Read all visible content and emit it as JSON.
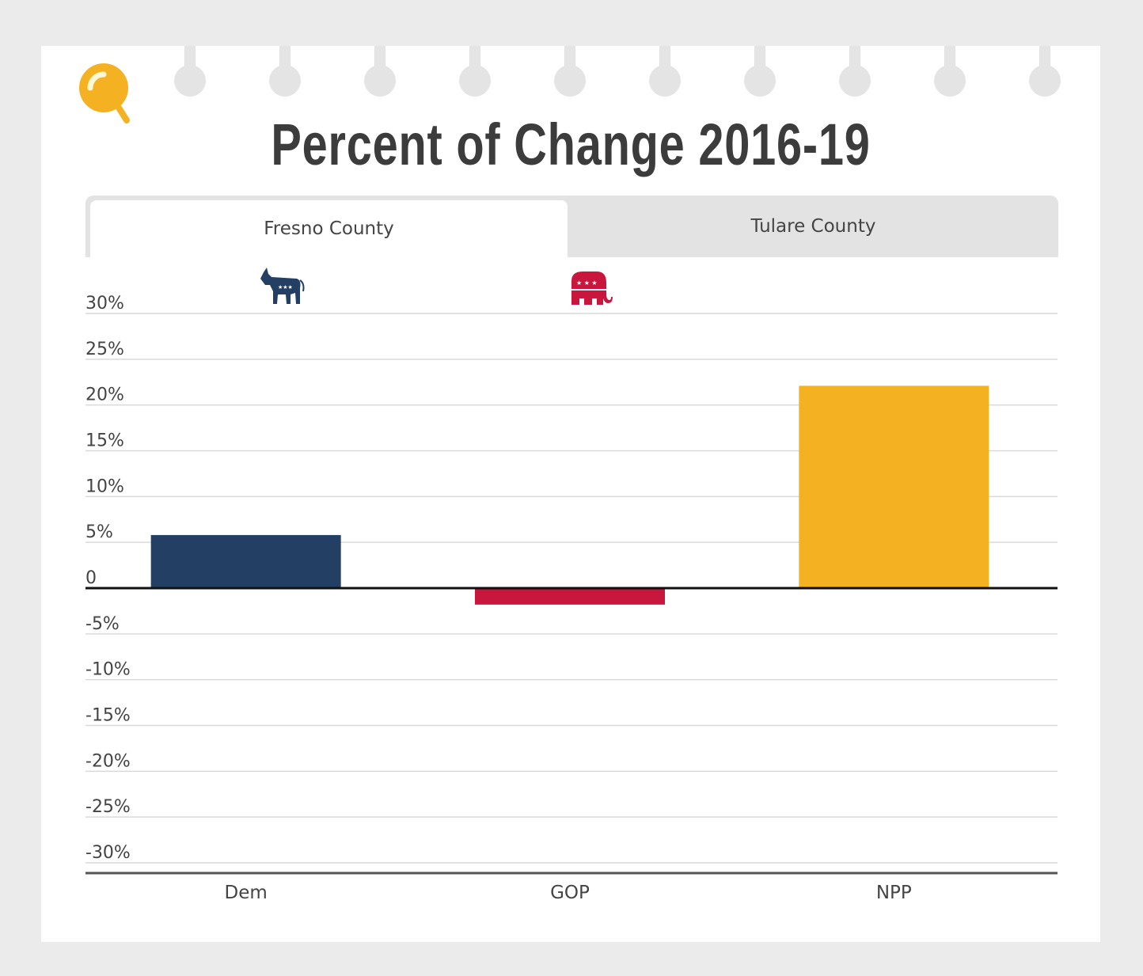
{
  "title": "Percent of Change 2016-19",
  "tabs": [
    {
      "label": "Fresno County",
      "active": true
    },
    {
      "label": "Tulare County",
      "active": false
    }
  ],
  "icons": {
    "logo": "magnifier-icon",
    "dem": "democrat-donkey-icon",
    "gop": "republican-elephant-icon"
  },
  "colors": {
    "dem": "#233f64",
    "gop": "#c8163d",
    "npp": "#f4b223",
    "logo": "#f4b223",
    "title": "#3c3c3c"
  },
  "chart_data": {
    "type": "bar",
    "categories": [
      "Dem",
      "GOP",
      "NPP"
    ],
    "values": [
      5.8,
      -1.8,
      22.1
    ],
    "colors": [
      "#233f64",
      "#c8163d",
      "#f4b223"
    ],
    "ylim": [
      -30,
      30
    ],
    "yticks": [
      30,
      25,
      20,
      15,
      10,
      5,
      0,
      -5,
      -10,
      -15,
      -20,
      -25,
      -30
    ],
    "ytick_labels": [
      "30%",
      "25%",
      "20%",
      "15%",
      "10%",
      "5%",
      "0",
      "-5%",
      "-10%",
      "-15%",
      "-20%",
      "-25%",
      "-30%"
    ],
    "grid": true
  }
}
